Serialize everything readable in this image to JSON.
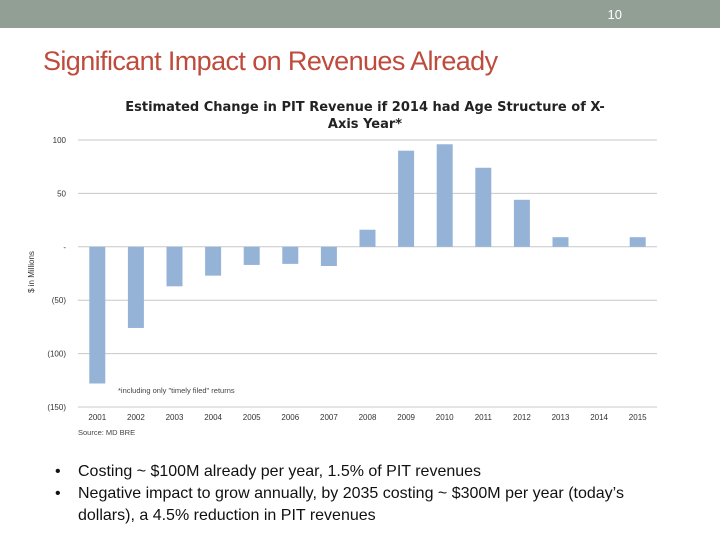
{
  "header": {
    "slide_number": "10",
    "bar_color": "#929f95"
  },
  "title": "Significant Impact on Revenues Already",
  "chart_data": {
    "type": "bar",
    "title": "Estimated Change in PIT Revenue if 2014 had Age Structure of X-Axis Year*",
    "title_lines": [
      "Estimated Change in PIT Revenue if 2014 had Age Structure of X-",
      "Axis Year*"
    ],
    "ylabel": "$ in Millions",
    "xlabel": "",
    "categories": [
      "2001",
      "2002",
      "2003",
      "2004",
      "2005",
      "2006",
      "2007",
      "2008",
      "2009",
      "2010",
      "2011",
      "2012",
      "2013",
      "2014",
      "2015"
    ],
    "values": [
      -128,
      -76,
      -37,
      -27,
      -17,
      -16,
      -18,
      16,
      90,
      96,
      74,
      44,
      9,
      0,
      9
    ],
    "ylim": [
      -150,
      100
    ],
    "yticks": [
      100,
      50,
      0,
      -50,
      -100,
      -150
    ],
    "ytick_labels": [
      "100",
      "50",
      "-",
      "(50)",
      "(100)",
      "(150)"
    ],
    "grid": true,
    "bar_color": "#95b3d7",
    "annotation": "*including only \"timely filed\" returns",
    "source": "Source: MD BRE"
  },
  "bullets": [
    "Costing ~ $100M already per year, 1.5% of PIT revenues",
    "Negative impact to grow annually, by 2035 costing ~ $300M per year (today’s dollars), a 4.5% reduction in PIT revenues"
  ],
  "bullet_symbol": "•"
}
